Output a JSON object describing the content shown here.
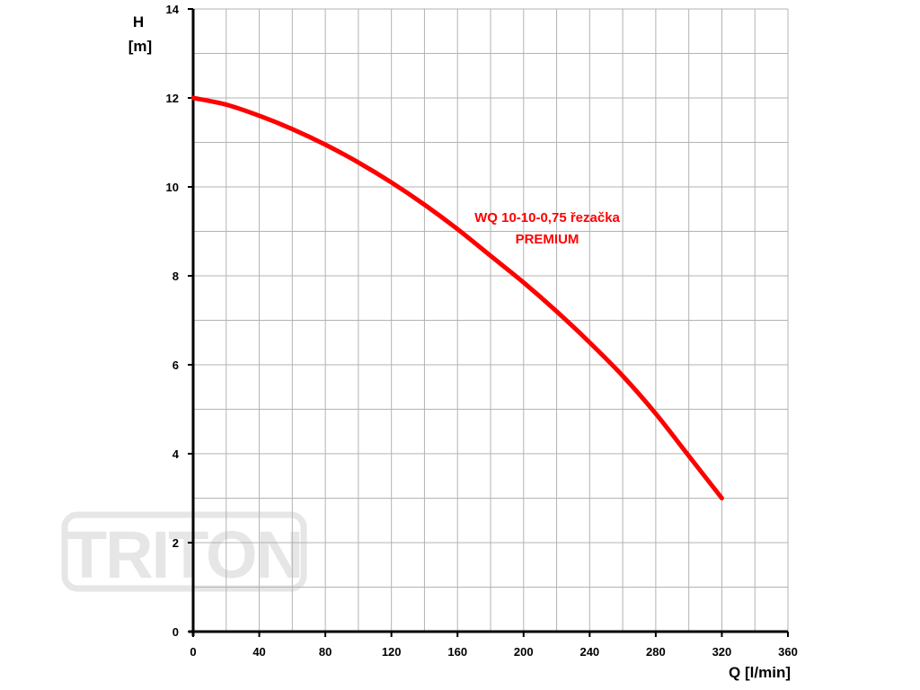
{
  "chart_data": {
    "type": "line",
    "x_label": "Q [l/min]",
    "y_label_line1": "H",
    "y_label_line2": "[m]",
    "xlim": [
      0,
      360
    ],
    "ylim": [
      0,
      14
    ],
    "x_ticks": [
      "0",
      "40",
      "80",
      "120",
      "160",
      "200",
      "240",
      "280",
      "320",
      "360"
    ],
    "y_ticks": [
      "0",
      "2",
      "4",
      "6",
      "8",
      "10",
      "12",
      "14"
    ],
    "x_grid_step": 20,
    "y_grid_step": 1,
    "grid": true,
    "series": [
      {
        "name_line1": "WQ 10-10-0,75 řezačka",
        "name_line2": "PREMIUM",
        "color": "#ff0000",
        "x": [
          0,
          20,
          40,
          60,
          80,
          100,
          120,
          140,
          160,
          180,
          200,
          220,
          240,
          260,
          280,
          300,
          320
        ],
        "y": [
          12.0,
          11.85,
          11.6,
          11.3,
          10.95,
          10.55,
          10.1,
          9.6,
          9.05,
          8.45,
          7.85,
          7.2,
          6.5,
          5.75,
          4.9,
          3.95,
          3.0
        ]
      }
    ]
  },
  "watermark": {
    "text": "TRITON",
    "color": "#e6e6e6"
  }
}
